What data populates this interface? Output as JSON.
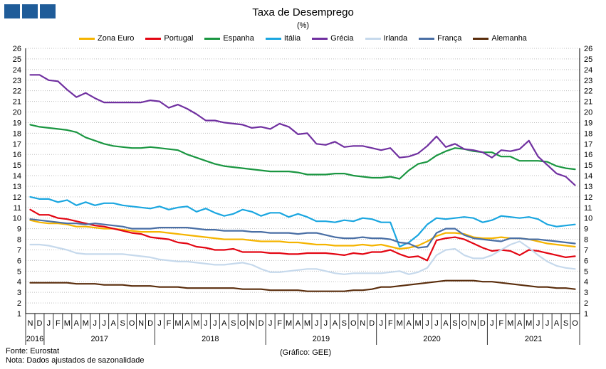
{
  "title": "Taxa de Desemprego",
  "subtitle": "(%)",
  "source": "Fonte: Eurostat",
  "note": "Nota: Dados ajustados de sazonalidade",
  "credit": "(Gráfico: GEE)",
  "colors": {
    "logo": "#1f5c99",
    "grid": "#bfbfbf"
  },
  "chart_data": {
    "type": "line",
    "title": "Taxa de Desemprego",
    "subtitle": "(%)",
    "ylim": [
      1,
      26
    ],
    "yticks": [
      1,
      2,
      3,
      4,
      5,
      6,
      7,
      8,
      9,
      10,
      11,
      12,
      13,
      14,
      15,
      16,
      17,
      18,
      19,
      20,
      21,
      22,
      23,
      24,
      25,
      26
    ],
    "grid": true,
    "legend_position": "top",
    "month_labels": [
      "N",
      "D",
      "J",
      "F",
      "M",
      "A",
      "M",
      "J",
      "J",
      "A",
      "S",
      "O",
      "N",
      "D",
      "J",
      "F",
      "M",
      "A",
      "M",
      "J",
      "J",
      "A",
      "S",
      "O",
      "N",
      "D",
      "J",
      "F",
      "M",
      "A",
      "M",
      "J",
      "J",
      "A",
      "S",
      "O",
      "N",
      "D",
      "J",
      "F",
      "M",
      "A",
      "M",
      "J",
      "J",
      "A",
      "S",
      "O",
      "N",
      "D",
      "J",
      "F",
      "M",
      "A",
      "M",
      "J",
      "J",
      "A",
      "S",
      "O"
    ],
    "year_labels": [
      {
        "label": "2016",
        "start": 0,
        "end": 1
      },
      {
        "label": "2017",
        "start": 2,
        "end": 13
      },
      {
        "label": "2018",
        "start": 14,
        "end": 25
      },
      {
        "label": "2019",
        "start": 26,
        "end": 37
      },
      {
        "label": "2020",
        "start": 38,
        "end": 49
      },
      {
        "label": "2021",
        "start": 50,
        "end": 59
      }
    ],
    "series": [
      {
        "name": "Zona Euro",
        "color": "#f5b400",
        "values": [
          9.8,
          9.6,
          9.5,
          9.5,
          9.4,
          9.2,
          9.2,
          9.1,
          9.0,
          9.0,
          8.9,
          8.8,
          8.7,
          8.7,
          8.7,
          8.6,
          8.5,
          8.4,
          8.3,
          8.2,
          8.1,
          8.0,
          8.0,
          8.0,
          7.9,
          7.8,
          7.8,
          7.8,
          7.7,
          7.7,
          7.6,
          7.5,
          7.5,
          7.4,
          7.4,
          7.4,
          7.5,
          7.4,
          7.5,
          7.3,
          7.1,
          7.2,
          7.4,
          7.8,
          8.3,
          8.6,
          8.6,
          8.5,
          8.2,
          8.1,
          8.1,
          8.2,
          8.1,
          8.1,
          8.0,
          7.8,
          7.6,
          7.5,
          7.4,
          7.3
        ]
      },
      {
        "name": "Portugal",
        "color": "#e30613",
        "values": [
          10.8,
          10.3,
          10.3,
          10.0,
          9.9,
          9.7,
          9.5,
          9.3,
          9.2,
          9.0,
          8.8,
          8.6,
          8.5,
          8.2,
          8.1,
          8.0,
          7.7,
          7.6,
          7.3,
          7.2,
          7.0,
          7.0,
          7.1,
          6.8,
          6.8,
          6.8,
          6.7,
          6.7,
          6.6,
          6.6,
          6.7,
          6.7,
          6.7,
          6.6,
          6.5,
          6.7,
          6.6,
          6.8,
          6.8,
          7.0,
          6.6,
          6.3,
          6.4,
          6.0,
          7.9,
          8.1,
          8.2,
          8.0,
          7.6,
          7.2,
          6.9,
          7.0,
          6.9,
          6.5,
          7.0,
          6.9,
          6.7,
          6.5,
          6.3,
          6.4
        ]
      },
      {
        "name": "Espanha",
        "color": "#1a9641",
        "values": [
          18.8,
          18.6,
          18.5,
          18.4,
          18.3,
          18.1,
          17.6,
          17.3,
          17.0,
          16.8,
          16.7,
          16.6,
          16.6,
          16.7,
          16.6,
          16.5,
          16.4,
          16.0,
          15.7,
          15.4,
          15.1,
          14.9,
          14.8,
          14.7,
          14.6,
          14.5,
          14.4,
          14.4,
          14.4,
          14.3,
          14.1,
          14.1,
          14.1,
          14.2,
          14.2,
          14.0,
          13.9,
          13.8,
          13.8,
          13.9,
          13.7,
          14.5,
          15.1,
          15.3,
          15.9,
          16.3,
          16.6,
          16.5,
          16.3,
          16.2,
          16.2,
          15.8,
          15.8,
          15.4,
          15.4,
          15.4,
          15.3,
          14.9,
          14.7,
          14.6
        ]
      },
      {
        "name": "Itália",
        "color": "#1aa6e0",
        "values": [
          12.0,
          11.8,
          11.8,
          11.5,
          11.7,
          11.2,
          11.5,
          11.2,
          11.4,
          11.4,
          11.2,
          11.1,
          11.0,
          10.9,
          11.1,
          10.8,
          11.0,
          11.1,
          10.6,
          10.9,
          10.5,
          10.2,
          10.4,
          10.8,
          10.6,
          10.2,
          10.5,
          10.5,
          10.1,
          10.4,
          10.1,
          9.7,
          9.7,
          9.6,
          9.8,
          9.7,
          10.0,
          9.9,
          9.6,
          9.6,
          7.3,
          7.7,
          8.4,
          9.4,
          10.0,
          9.9,
          10.0,
          10.1,
          10.0,
          9.6,
          9.8,
          10.2,
          10.1,
          10.0,
          10.1,
          9.9,
          9.4,
          9.2,
          9.3,
          9.4
        ]
      },
      {
        "name": "Grécia",
        "color": "#7030a0",
        "values": [
          23.5,
          23.5,
          23.0,
          22.9,
          22.1,
          21.4,
          21.8,
          21.3,
          20.9,
          20.9,
          20.9,
          20.9,
          20.9,
          21.1,
          21.0,
          20.4,
          20.7,
          20.3,
          19.8,
          19.2,
          19.2,
          19.0,
          18.9,
          18.8,
          18.5,
          18.6,
          18.4,
          18.9,
          18.6,
          17.9,
          18.0,
          17.0,
          16.9,
          17.2,
          16.7,
          16.8,
          16.8,
          16.6,
          16.4,
          16.6,
          15.7,
          15.8,
          16.1,
          16.8,
          17.7,
          16.7,
          17.0,
          16.5,
          16.4,
          16.2,
          15.7,
          16.4,
          16.3,
          16.5,
          17.3,
          15.8,
          15.0,
          14.2,
          13.9,
          13.1
        ]
      },
      {
        "name": "Irlanda",
        "color": "#c6d9ec",
        "values": [
          7.5,
          7.5,
          7.4,
          7.2,
          7.0,
          6.7,
          6.6,
          6.6,
          6.6,
          6.6,
          6.6,
          6.5,
          6.4,
          6.3,
          6.1,
          6.0,
          5.9,
          5.9,
          5.8,
          5.7,
          5.6,
          5.6,
          5.7,
          5.8,
          5.6,
          5.2,
          4.9,
          4.9,
          5.0,
          5.1,
          5.2,
          5.2,
          5.0,
          4.8,
          4.7,
          4.8,
          4.8,
          4.8,
          4.8,
          4.9,
          5.0,
          4.7,
          4.9,
          5.3,
          6.5,
          7.0,
          7.1,
          6.5,
          6.2,
          6.2,
          6.5,
          7.0,
          7.5,
          7.8,
          7.2,
          6.5,
          5.9,
          5.5,
          5.3,
          5.2
        ]
      },
      {
        "name": "França",
        "color": "#4a6fa5",
        "values": [
          9.9,
          9.8,
          9.7,
          9.6,
          9.5,
          9.5,
          9.4,
          9.5,
          9.4,
          9.3,
          9.2,
          9.0,
          9.0,
          9.0,
          9.1,
          9.1,
          9.1,
          9.1,
          9.0,
          8.9,
          8.9,
          8.8,
          8.8,
          8.8,
          8.7,
          8.7,
          8.6,
          8.6,
          8.6,
          8.5,
          8.6,
          8.6,
          8.4,
          8.2,
          8.1,
          8.1,
          8.2,
          8.1,
          8.1,
          8.0,
          7.7,
          7.6,
          7.2,
          7.3,
          8.6,
          9.0,
          9.0,
          8.4,
          8.1,
          8.0,
          7.9,
          7.8,
          8.1,
          8.1,
          8.0,
          8.0,
          7.9,
          7.8,
          7.7,
          7.6
        ]
      },
      {
        "name": "Alemanha",
        "color": "#5a2d0c",
        "values": [
          3.9,
          3.9,
          3.9,
          3.9,
          3.9,
          3.8,
          3.8,
          3.8,
          3.7,
          3.7,
          3.7,
          3.6,
          3.6,
          3.6,
          3.5,
          3.5,
          3.5,
          3.4,
          3.4,
          3.4,
          3.4,
          3.4,
          3.4,
          3.3,
          3.3,
          3.3,
          3.2,
          3.2,
          3.2,
          3.2,
          3.1,
          3.1,
          3.1,
          3.1,
          3.1,
          3.2,
          3.2,
          3.3,
          3.5,
          3.5,
          3.6,
          3.7,
          3.8,
          3.9,
          4.0,
          4.1,
          4.1,
          4.1,
          4.1,
          4.0,
          4.0,
          3.9,
          3.8,
          3.7,
          3.6,
          3.5,
          3.5,
          3.4,
          3.4,
          3.3
        ]
      }
    ]
  }
}
